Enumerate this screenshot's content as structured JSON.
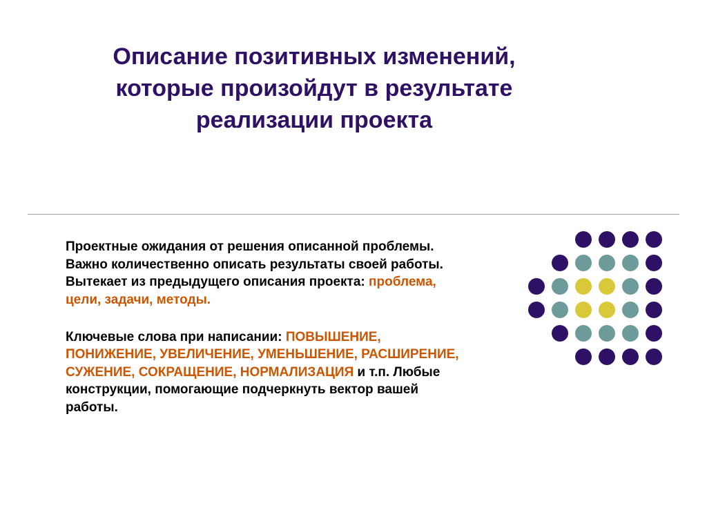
{
  "title": {
    "text": "Описание позитивных изменений,  которые произойдут в результате реализации проекта",
    "color": "#2e1065",
    "fontsize": 34
  },
  "body": {
    "fontsize": 19,
    "text_color": "#000000",
    "highlight_color": "#cc5500",
    "para1_plain": "Проектные ожидания от решения описанной проблемы. Важно количественно описать результаты своей работы. Вытекает из предыдущего описания проекта: ",
    "para1_highlight": "проблема, цели, задачи, методы.",
    "para2_pre": "Ключевые  слова при написании: ",
    "para2_highlight": "ПОВЫШЕНИЕ, ПОНИЖЕНИЕ, УВЕЛИЧЕНИЕ, УМЕНЬШЕНИЕ, РАСШИРЕНИЕ, СУЖЕНИЕ, СОКРАЩЕНИЕ, НОРМАЛИЗАЦИЯ",
    "para2_post": " и т.п. Любые конструкции, помогающие подчеркнуть вектор вашей работы."
  },
  "dotgrid": {
    "dot_size": 24,
    "cell_size": 34,
    "colors": {
      "purple": "#2e1065",
      "teal": "#6d9b99",
      "yellow": "#d9c93a",
      "empty": "transparent"
    },
    "pattern": [
      [
        "empty",
        "empty",
        "purple",
        "purple",
        "purple",
        "purple"
      ],
      [
        "empty",
        "purple",
        "teal",
        "teal",
        "teal",
        "purple"
      ],
      [
        "purple",
        "teal",
        "yellow",
        "yellow",
        "teal",
        "purple"
      ],
      [
        "purple",
        "teal",
        "yellow",
        "yellow",
        "teal",
        "purple"
      ],
      [
        "empty",
        "purple",
        "teal",
        "teal",
        "teal",
        "purple"
      ],
      [
        "empty",
        "empty",
        "purple",
        "purple",
        "purple",
        "purple"
      ]
    ]
  }
}
